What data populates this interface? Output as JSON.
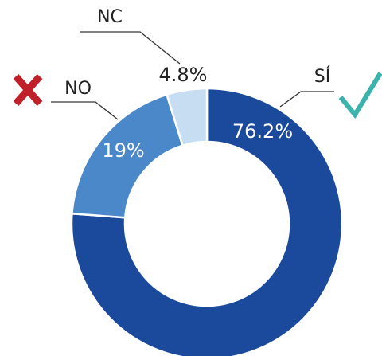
{
  "chart_data": {
    "type": "pie",
    "donut": true,
    "categories": [
      "SÍ",
      "NO",
      "NC"
    ],
    "values": [
      76.2,
      19,
      4.8
    ],
    "value_labels": [
      "76.2%",
      "19%",
      "4.8%"
    ],
    "colors": [
      "#1b4a9d",
      "#4a88c9",
      "#c6ddf2"
    ]
  }
}
